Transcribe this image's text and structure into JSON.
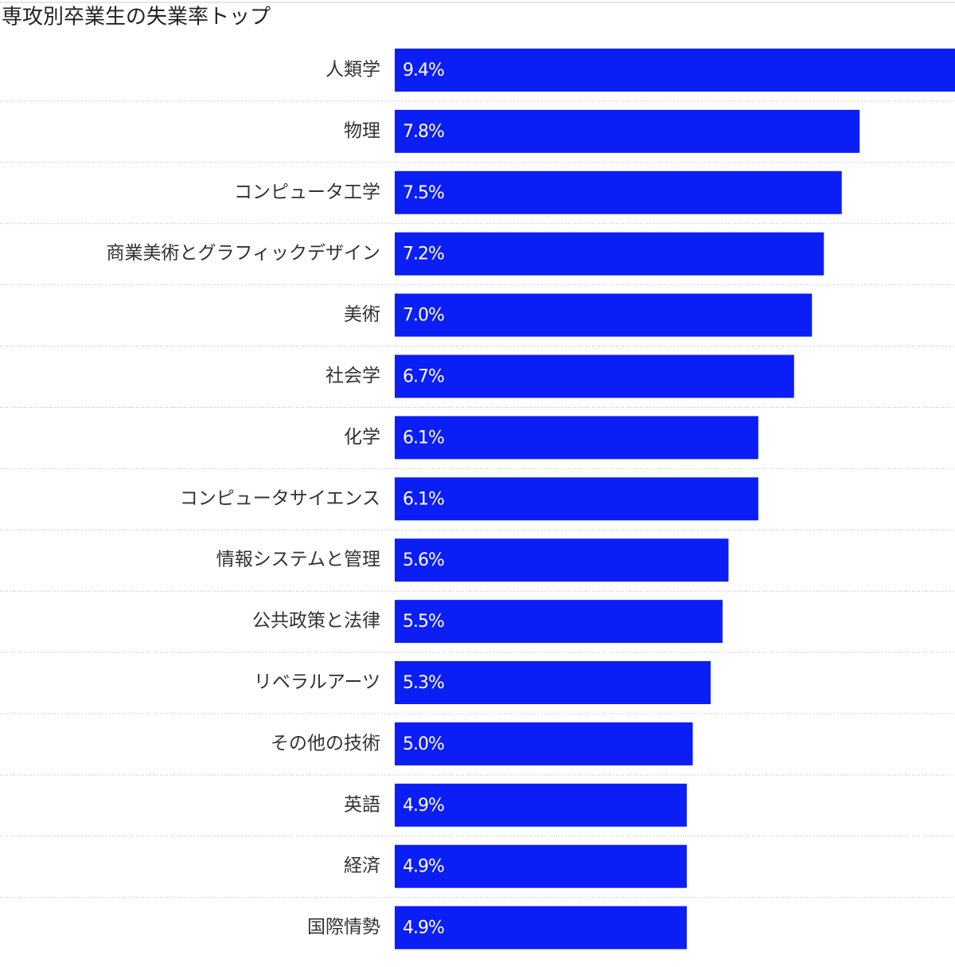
{
  "chart_data": {
    "type": "bar",
    "orientation": "horizontal",
    "title": "専攻別卒業生の失業率トップ",
    "categories": [
      "人類学",
      "物理",
      "コンピュータ工学",
      "商業美術とグラフィックデザイン",
      "美術",
      "社会学",
      "化学",
      "コンピュータサイエンス",
      "情報システムと管理",
      "公共政策と法律",
      "リベラルアーツ",
      "その他の技術",
      "英語",
      "経済",
      "国際情勢"
    ],
    "values": [
      9.4,
      7.8,
      7.5,
      7.2,
      7.0,
      6.7,
      6.1,
      6.1,
      5.6,
      5.5,
      5.3,
      5.0,
      4.9,
      4.9,
      4.9
    ],
    "value_labels": [
      "9.4%",
      "7.8%",
      "7.5%",
      "7.2%",
      "7.0%",
      "6.7%",
      "6.1%",
      "6.1%",
      "5.6%",
      "5.5%",
      "5.3%",
      "5.0%",
      "4.9%",
      "4.9%",
      "4.9%"
    ],
    "color": "#0b1ef5",
    "xlim": [
      0,
      9.4
    ],
    "grid": true
  }
}
